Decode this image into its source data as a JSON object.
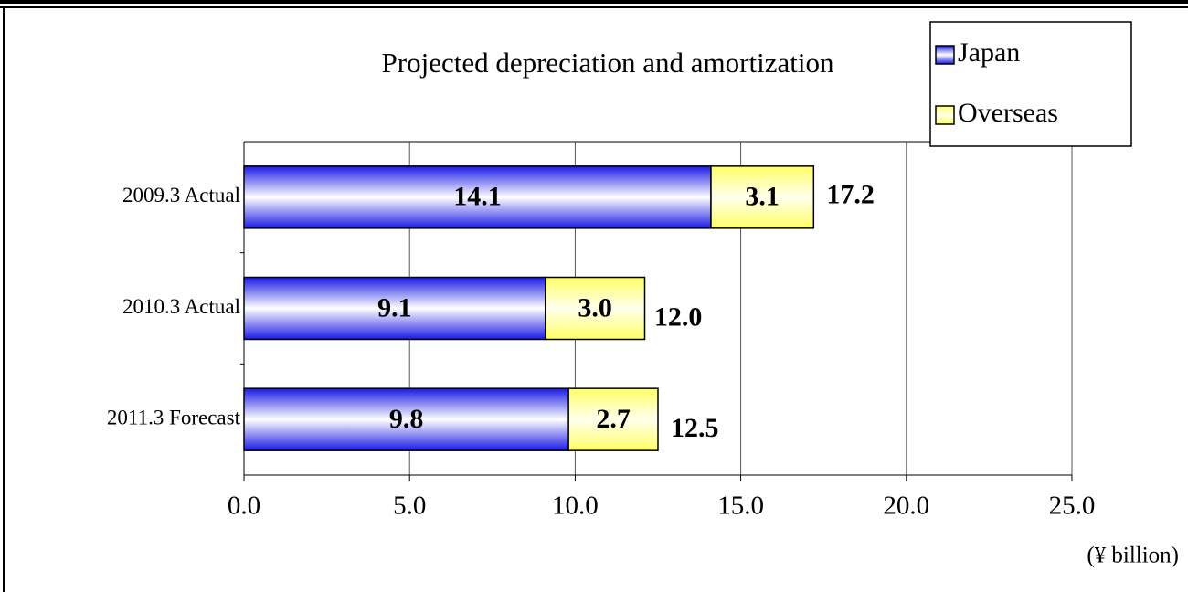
{
  "chart_data": {
    "type": "stacked_barh",
    "title": "Projected depreciation and amortization",
    "unit_label": "(¥ billion)",
    "categories": [
      "2009.3 Actual",
      "2010.3 Actual",
      "2011.3 Forecast"
    ],
    "series": [
      {
        "name": "Japan",
        "color": "#1a1ae6",
        "values": [
          14.1,
          9.1,
          9.8
        ],
        "value_labels": [
          "14.1",
          "9.1",
          "9.8"
        ]
      },
      {
        "name": "Overseas",
        "color": "#ffff66",
        "values": [
          3.1,
          3.0,
          2.7
        ],
        "value_labels": [
          "3.1",
          "3.0",
          "2.7"
        ]
      }
    ],
    "totals": [
      17.2,
      12.0,
      12.5
    ],
    "total_labels": [
      "17.2",
      "12.0",
      "12.5"
    ],
    "xlim": [
      0,
      25
    ],
    "xticks": [
      {
        "value": 0,
        "label": "0.0"
      },
      {
        "value": 5,
        "label": "5.0"
      },
      {
        "value": 10,
        "label": "10.0"
      },
      {
        "value": 15,
        "label": "15.0"
      },
      {
        "value": 20,
        "label": "20.0"
      },
      {
        "value": 25,
        "label": "25.0"
      }
    ],
    "grid": true,
    "legend": "top-right"
  }
}
